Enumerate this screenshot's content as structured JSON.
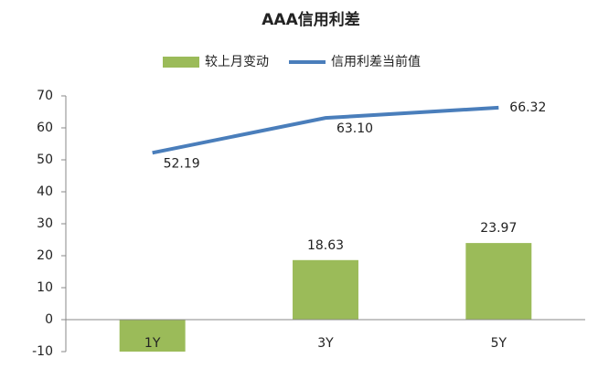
{
  "chart_data": {
    "type": "bar",
    "title": "AAA信用利差",
    "categories": [
      "1Y",
      "3Y",
      "5Y"
    ],
    "series": [
      {
        "name": "较上月变动",
        "type": "bar",
        "color": "#9bbb59",
        "values": [
          -10,
          18.63,
          23.97
        ],
        "value_labels": [
          null,
          "18.63",
          "23.97"
        ]
      },
      {
        "name": "信用利差当前值",
        "type": "line",
        "color": "#4a7ebb",
        "values": [
          52.19,
          63.1,
          66.32
        ],
        "value_labels": [
          "52.19",
          "63.10",
          "66.32"
        ]
      }
    ],
    "ylim": [
      -10,
      70
    ],
    "yticks": [
      -10,
      0,
      10,
      20,
      30,
      40,
      50,
      60,
      70
    ],
    "legend": "top"
  }
}
